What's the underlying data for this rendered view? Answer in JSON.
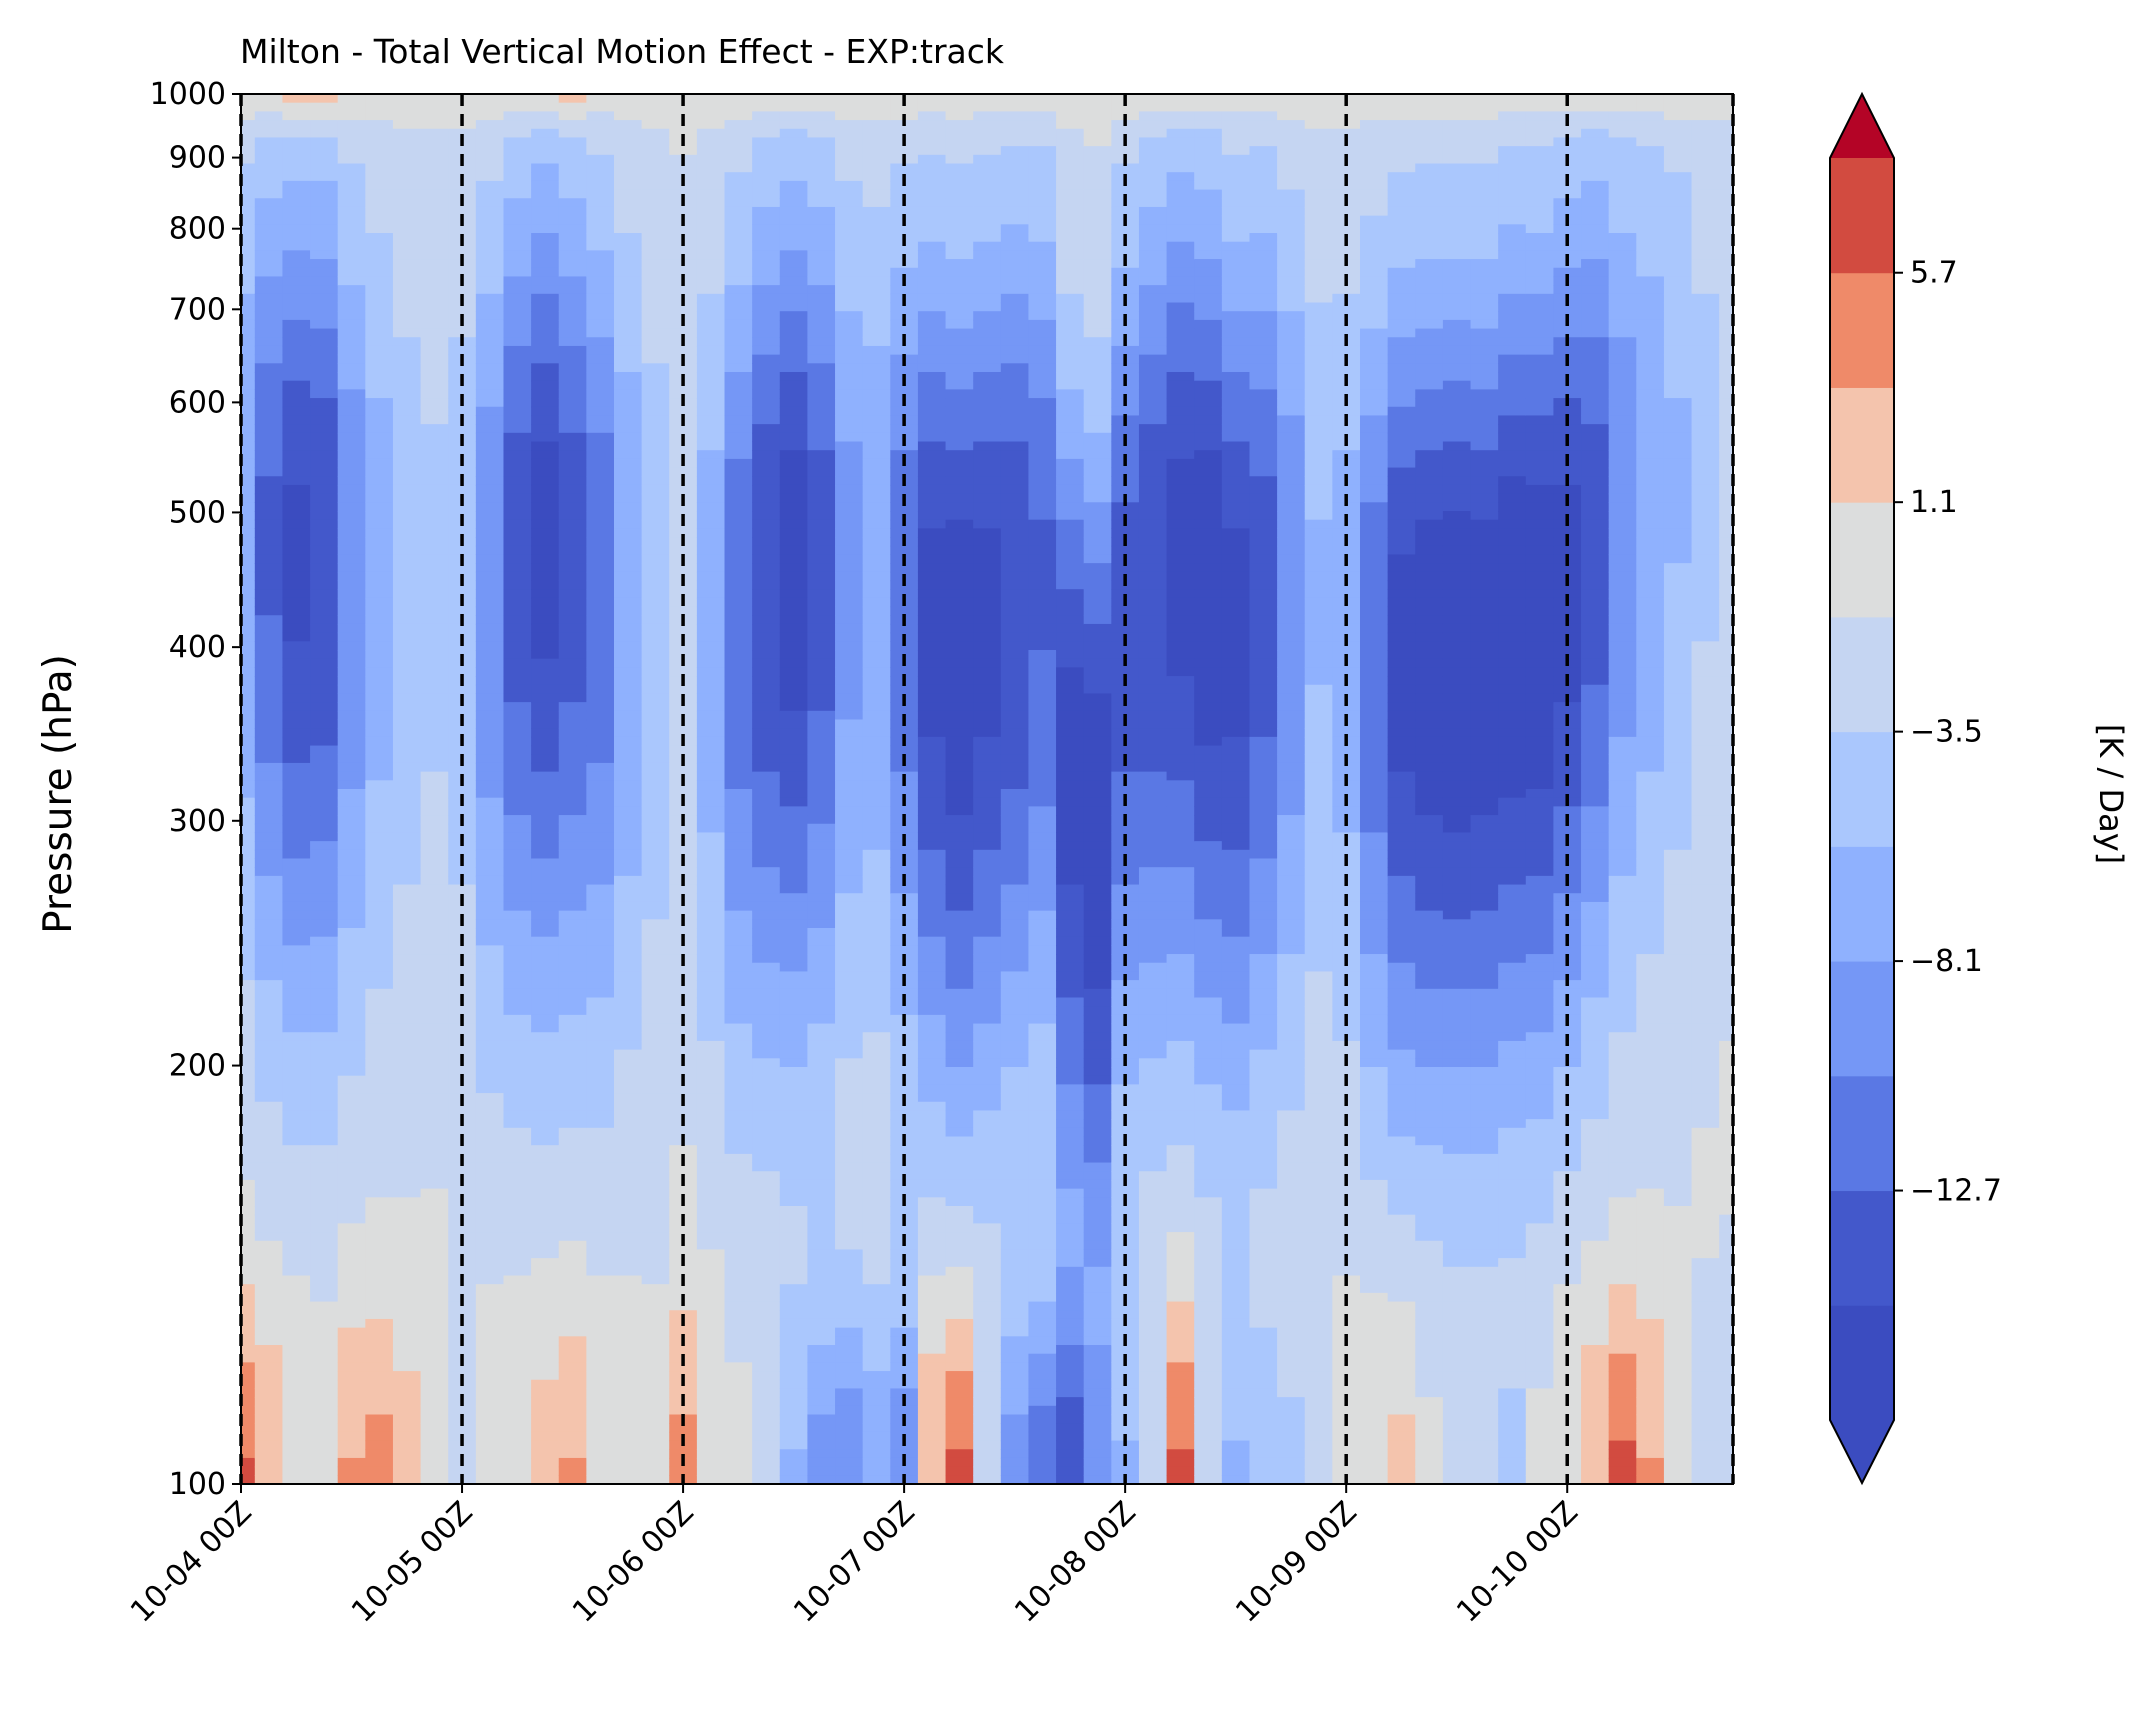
{
  "chart_data": {
    "type": "heatmap",
    "subtype": "filled-contour",
    "title": "Milton - Total Vertical Motion Effect - EXP:track",
    "xlabel": "",
    "ylabel": "Pressure (hPa)",
    "colorbar_label": "[K / Day]",
    "y_scale": "log",
    "y_inverted": true,
    "ylim": [
      1000,
      100
    ],
    "y_ticks": [
      100,
      200,
      300,
      400,
      500,
      600,
      700,
      800,
      900,
      1000
    ],
    "y_tick_labels": [
      "100",
      "200",
      "300",
      "400",
      "500",
      "600",
      "700",
      "800",
      "900",
      "1000"
    ],
    "x_ticks": [
      "10-04 00Z",
      "10-05 00Z",
      "10-06 00Z",
      "10-07 00Z",
      "10-08 00Z",
      "10-09 00Z",
      "10-10 00Z"
    ],
    "xlim": [
      "10-04 00Z",
      "10-10 18Z"
    ],
    "x_step_hours": 3,
    "day_boundaries": [
      "10-04 00Z",
      "10-05 00Z",
      "10-06 00Z",
      "10-07 00Z",
      "10-08 00Z",
      "10-09 00Z",
      "10-10 00Z",
      "10-10 18Z"
    ],
    "colorbar_ticks": [
      5.7,
      1.1,
      -3.5,
      -8.1,
      -12.7
    ],
    "colorbar_tick_labels": [
      "5.7",
      "1.1",
      "−3.5",
      "−8.1",
      "−12.7"
    ],
    "levels": [
      -17.3,
      -15.0,
      -12.7,
      -10.4,
      -8.1,
      -5.8,
      -3.5,
      -1.2,
      1.1,
      3.4,
      5.7,
      8.0
    ],
    "colors": [
      "#3b4cc0",
      "#4358cb",
      "#5a78e4",
      "#7597f6",
      "#8fb1fe",
      "#aac7fd",
      "#c5d5f2",
      "#dcdddd",
      "#f4c4ad",
      "#ef8a69",
      "#d24b40",
      "#b40426"
    ],
    "extend": "both",
    "column_peaks": {
      "times": [
        "10-04 00Z",
        "10-04 03Z",
        "10-04 06Z",
        "10-04 09Z",
        "10-04 12Z",
        "10-04 15Z",
        "10-04 18Z",
        "10-04 21Z",
        "10-05 00Z",
        "10-05 03Z",
        "10-05 06Z",
        "10-05 09Z",
        "10-05 12Z",
        "10-05 15Z",
        "10-05 18Z",
        "10-05 21Z",
        "10-06 00Z",
        "10-06 03Z",
        "10-06 06Z",
        "10-06 09Z",
        "10-06 12Z",
        "10-06 15Z",
        "10-06 18Z",
        "10-06 21Z",
        "10-07 00Z",
        "10-07 03Z",
        "10-07 06Z",
        "10-07 09Z",
        "10-07 12Z",
        "10-07 15Z",
        "10-07 18Z",
        "10-07 21Z",
        "10-08 00Z",
        "10-08 03Z",
        "10-08 06Z",
        "10-08 09Z",
        "10-08 12Z",
        "10-08 15Z",
        "10-08 18Z",
        "10-08 21Z",
        "10-09 00Z",
        "10-09 03Z",
        "10-09 06Z",
        "10-09 09Z",
        "10-09 12Z",
        "10-09 15Z",
        "10-09 18Z",
        "10-09 21Z",
        "10-10 00Z",
        "10-10 03Z",
        "10-10 06Z",
        "10-10 09Z",
        "10-10 12Z",
        "10-10 15Z",
        "10-10 18Z"
      ],
      "min_value_K_per_day": [
        -8,
        -13,
        -15.5,
        -15,
        -10,
        -7,
        -5,
        -4,
        -5,
        -10,
        -14,
        -16,
        -14,
        -12,
        -8,
        -5,
        -3,
        -7,
        -12,
        -15,
        -16.5,
        -14,
        -9,
        -8,
        -12,
        -16,
        -17,
        -16,
        -15,
        -13,
        -16,
        -17,
        -14,
        -15,
        -16,
        -17,
        -16,
        -14,
        -10,
        -6,
        -7,
        -12,
        -16,
        -17,
        -17.3,
        -17,
        -17.3,
        -17,
        -16,
        -14,
        -10,
        -8,
        -6,
        -4,
        -3
      ],
      "min_pressure_hPa": [
        500,
        480,
        470,
        470,
        460,
        460,
        450,
        450,
        450,
        450,
        470,
        480,
        470,
        450,
        440,
        430,
        420,
        420,
        430,
        450,
        460,
        460,
        460,
        460,
        440,
        420,
        400,
        420,
        440,
        450,
        330,
        300,
        420,
        450,
        470,
        450,
        420,
        440,
        440,
        440,
        420,
        400,
        400,
        400,
        400,
        400,
        420,
        420,
        450,
        480,
        500,
        520,
        540,
        560,
        580
      ],
      "upper_max_value_K_per_day": [
        5.8,
        3,
        1,
        0,
        3.5,
        4,
        2,
        1,
        -3,
        0,
        1,
        2,
        3.5,
        1,
        0,
        -1,
        4,
        1,
        -1,
        -2,
        -6,
        -9,
        -10,
        -8,
        -10,
        3,
        6,
        -2,
        -9,
        -12,
        -15,
        -10,
        -6,
        -2,
        6,
        -2,
        -6,
        -5,
        -4,
        -2,
        0,
        1,
        1.5,
        -1,
        -3,
        -3,
        -4,
        -1,
        1,
        3,
        6,
        3.5,
        -1,
        -2,
        -3
      ],
      "near_surface_value_K_per_day": [
        0,
        0,
        2,
        2,
        0,
        0,
        0,
        0,
        0,
        0,
        0,
        0,
        1.5,
        0,
        0,
        0,
        0,
        0,
        0,
        0,
        0,
        0,
        0,
        0,
        0,
        0,
        0,
        0,
        0,
        0,
        0,
        0,
        0,
        0,
        0,
        0,
        0,
        0,
        0,
        0,
        0,
        0,
        0,
        0,
        0,
        0,
        0,
        0,
        0,
        0,
        0,
        0,
        0,
        0,
        0
      ]
    }
  }
}
